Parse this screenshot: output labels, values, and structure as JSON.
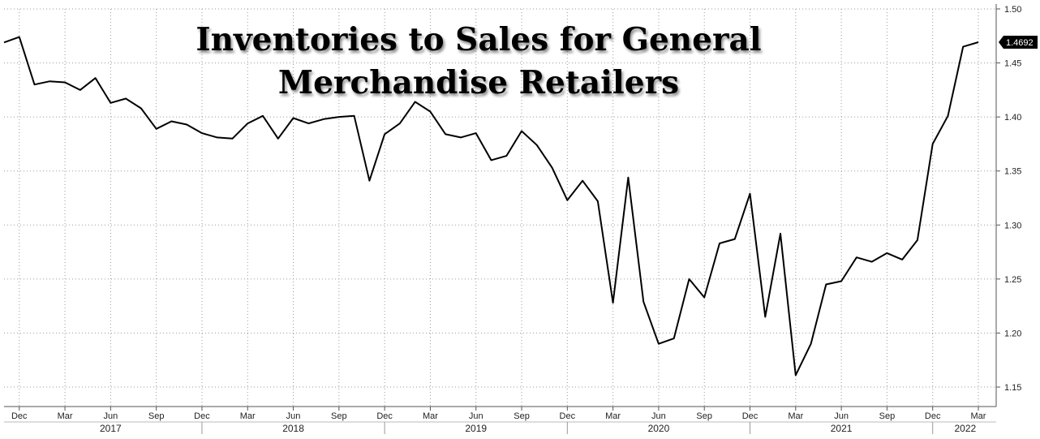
{
  "chart_data": {
    "type": "line",
    "title": "Inventories to Sales for General Merchandise Retailers",
    "title_lines": [
      "Inventories to Sales for General",
      "Merchandise Retailers"
    ],
    "x_tick_labels": [
      "Dec",
      "Mar",
      "Jun",
      "Sep",
      "Dec",
      "Mar",
      "Jun",
      "Sep",
      "Dec",
      "Mar",
      "Jun",
      "Sep",
      "Dec",
      "Mar",
      "Jun",
      "Sep",
      "Dec",
      "Mar",
      "Jun",
      "Sep",
      "Dec",
      "Mar"
    ],
    "year_labels": [
      "2017",
      "2018",
      "2019",
      "2020",
      "2021",
      "2022"
    ],
    "y_ticks": [
      "1.15",
      "1.20",
      "1.25",
      "1.30",
      "1.35",
      "1.40",
      "1.45",
      "1.50"
    ],
    "ylim": [
      1.15,
      1.5
    ],
    "grid": true,
    "axis_position": "right",
    "last_value_label": "1.4692",
    "series": [
      {
        "color": "#000000",
        "x": [
          "2016-11",
          "2016-12",
          "2017-01",
          "2017-02",
          "2017-03",
          "2017-04",
          "2017-05",
          "2017-06",
          "2017-07",
          "2017-08",
          "2017-09",
          "2017-10",
          "2017-11",
          "2017-12",
          "2018-01",
          "2018-02",
          "2018-03",
          "2018-04",
          "2018-05",
          "2018-06",
          "2018-07",
          "2018-08",
          "2018-09",
          "2018-10",
          "2018-11",
          "2018-12",
          "2019-01",
          "2019-02",
          "2019-03",
          "2019-04",
          "2019-05",
          "2019-06",
          "2019-07",
          "2019-08",
          "2019-09",
          "2019-10",
          "2019-11",
          "2019-12",
          "2020-01",
          "2020-02",
          "2020-03",
          "2020-04",
          "2020-05",
          "2020-06",
          "2020-07",
          "2020-08",
          "2020-09",
          "2020-10",
          "2020-11",
          "2020-12",
          "2021-01",
          "2021-02",
          "2021-03",
          "2021-04",
          "2021-05",
          "2021-06",
          "2021-07",
          "2021-08",
          "2021-09",
          "2021-10",
          "2021-11",
          "2021-12",
          "2022-01",
          "2022-02",
          "2022-03"
        ],
        "values": [
          1.469,
          1.474,
          1.43,
          1.433,
          1.432,
          1.425,
          1.436,
          1.413,
          1.417,
          1.408,
          1.389,
          1.396,
          1.393,
          1.385,
          1.381,
          1.38,
          1.394,
          1.401,
          1.38,
          1.399,
          1.394,
          1.398,
          1.4,
          1.401,
          1.341,
          1.384,
          1.394,
          1.414,
          1.405,
          1.384,
          1.381,
          1.385,
          1.36,
          1.364,
          1.387,
          1.374,
          1.353,
          1.323,
          1.341,
          1.322,
          1.228,
          1.344,
          1.229,
          1.19,
          1.195,
          1.25,
          1.233,
          1.283,
          1.287,
          1.329,
          1.215,
          1.292,
          1.161,
          1.19,
          1.245,
          1.248,
          1.27,
          1.266,
          1.274,
          1.268,
          1.286,
          1.375,
          1.401,
          1.465,
          1.4692
        ]
      }
    ]
  }
}
